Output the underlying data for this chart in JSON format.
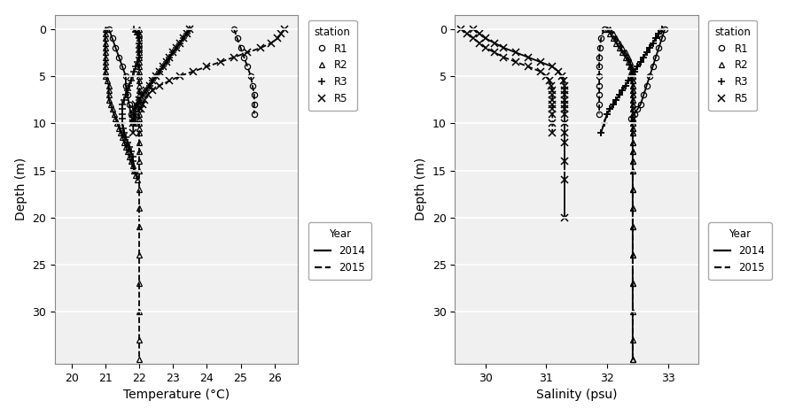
{
  "temp_panel": {
    "xlabel": "Temperature (°C)",
    "ylabel": "Depth (m)",
    "xlim": [
      19.5,
      26.7
    ],
    "ylim": [
      35.5,
      -1.5
    ],
    "xticks": [
      20,
      21,
      22,
      23,
      24,
      25,
      26
    ],
    "yticks": [
      0,
      5,
      10,
      15,
      20,
      25,
      30
    ],
    "R1_2014_x": [
      21.1,
      21.2,
      21.3,
      21.4,
      21.5,
      21.6,
      21.6,
      21.65,
      21.7,
      21.75,
      21.8
    ],
    "R1_2014_y": [
      0,
      1,
      2,
      3,
      4,
      5,
      6,
      7,
      8,
      9,
      10
    ],
    "R1_2015_x": [
      24.8,
      24.9,
      25.0,
      25.1,
      25.2,
      25.3,
      25.35,
      25.4,
      25.4,
      25.4
    ],
    "R1_2015_y": [
      0,
      1,
      2,
      3,
      4,
      5,
      6,
      7,
      8,
      9
    ],
    "R2_2014_x": [
      21.0,
      21.0,
      21.0,
      21.0,
      21.0,
      21.0,
      21.0,
      21.0,
      21.0,
      21.0,
      21.0,
      21.05,
      21.1,
      21.1,
      21.1,
      21.1,
      21.15,
      21.2,
      21.25,
      21.3,
      21.35,
      21.4,
      21.45,
      21.5,
      21.55,
      21.6,
      21.65,
      21.7,
      21.75,
      21.8,
      21.85,
      21.9,
      21.95
    ],
    "R2_2014_y": [
      0,
      0.5,
      1,
      1.5,
      2,
      2.5,
      3,
      3.5,
      4,
      4.5,
      5,
      5.5,
      6,
      6.5,
      7,
      7.5,
      8,
      8.5,
      9,
      9.5,
      10,
      10.5,
      11,
      11.5,
      12,
      12.5,
      13,
      13.5,
      14,
      14.5,
      15,
      15.5,
      16
    ],
    "R2_2015_x": [
      22.0,
      22.0,
      22.0,
      22.0,
      22.0,
      22.0,
      22.0,
      22.0,
      22.0,
      22.0,
      22.0,
      22.0,
      22.0,
      22.0,
      22.0,
      22.0,
      22.0,
      22.0,
      22.0,
      22.0,
      22.0,
      22.0,
      22.0,
      22.0,
      22.0,
      22.0,
      22.0,
      22.0,
      22.0,
      22.0,
      22.0,
      22.0,
      22.0,
      22.0,
      22.0
    ],
    "R2_2015_y": [
      0,
      0.5,
      1,
      1.5,
      2,
      2.5,
      3,
      3.5,
      4,
      4.5,
      5,
      5.5,
      6,
      6.5,
      7,
      7.5,
      8,
      8.5,
      9,
      9.5,
      10,
      10.5,
      11,
      12,
      13,
      14,
      15,
      17,
      19,
      21,
      24,
      27,
      30,
      33,
      35
    ],
    "R3_2014_x": [
      21.85,
      21.9,
      21.95,
      22.0,
      22.0,
      22.0,
      22.0,
      22.0,
      21.95,
      21.9,
      21.85,
      21.8,
      21.75,
      21.7,
      21.65,
      21.6,
      21.55,
      21.5,
      21.5,
      21.5,
      21.5,
      21.5,
      21.52,
      21.55,
      21.6,
      21.65,
      21.7,
      21.75,
      21.8,
      21.82,
      21.85
    ],
    "R3_2014_y": [
      0,
      0.3,
      0.6,
      1,
      1.5,
      2,
      2.5,
      3,
      3.5,
      4,
      4.5,
      5,
      5.5,
      6,
      6.5,
      7,
      7.5,
      8,
      8.5,
      9,
      9.5,
      10,
      10.5,
      11,
      11.5,
      12,
      12.5,
      13,
      13.5,
      14,
      15
    ],
    "R3_2015_x": [
      23.5,
      23.4,
      23.3,
      23.2,
      23.1,
      23.0,
      22.9,
      22.8,
      22.7,
      22.6,
      22.5,
      22.4,
      22.3,
      22.2,
      22.1,
      22.0,
      21.95,
      21.9,
      21.88,
      21.87,
      21.86
    ],
    "R3_2015_y": [
      0,
      0.5,
      1,
      1.5,
      2,
      2.5,
      3,
      3.5,
      4,
      4.5,
      5,
      5.5,
      6,
      6.5,
      7,
      7.5,
      8,
      8.5,
      9,
      9.5,
      10
    ],
    "R5_2014_x": [
      23.5,
      23.4,
      23.3,
      23.2,
      23.1,
      23.0,
      22.9,
      22.8,
      22.7,
      22.6,
      22.5,
      22.4,
      22.3,
      22.2,
      22.1,
      22.0,
      21.9,
      21.85,
      21.82,
      21.82,
      21.82,
      21.82
    ],
    "R5_2014_y": [
      0,
      0.5,
      1,
      1.5,
      2,
      2.5,
      3,
      3.5,
      4,
      4.5,
      5,
      5.5,
      6,
      6.5,
      7,
      7.5,
      8,
      8.5,
      9,
      9.5,
      10,
      11
    ],
    "R5_2015_x": [
      26.3,
      26.2,
      26.1,
      25.9,
      25.6,
      25.2,
      24.8,
      24.4,
      24.0,
      23.6,
      23.2,
      22.9,
      22.6,
      22.4,
      22.25,
      22.15,
      22.1,
      22.05
    ],
    "R5_2015_y": [
      0,
      0.5,
      1,
      1.5,
      2,
      2.5,
      3,
      3.5,
      4,
      4.5,
      5,
      5.5,
      6,
      6.5,
      7,
      7.5,
      8,
      8.5
    ]
  },
  "sal_panel": {
    "xlabel": "Salinity (psu)",
    "ylabel": "Depth (m)",
    "xlim": [
      29.5,
      33.5
    ],
    "ylim": [
      35.5,
      -1.5
    ],
    "xticks": [
      30,
      31,
      32,
      33
    ],
    "yticks": [
      0,
      5,
      10,
      15,
      20,
      25,
      30
    ],
    "R1_2014_x": [
      32.95,
      32.9,
      32.85,
      32.8,
      32.75,
      32.7,
      32.65,
      32.6,
      32.55,
      32.5,
      32.45,
      32.4
    ],
    "R1_2014_y": [
      0,
      1,
      2,
      3,
      4,
      5,
      6,
      7,
      8,
      8.5,
      9,
      9.5
    ],
    "R1_2015_x": [
      31.95,
      31.9,
      31.88,
      31.87,
      31.87,
      31.87,
      31.87,
      31.87,
      31.87,
      31.87
    ],
    "R1_2015_y": [
      0,
      1,
      2,
      3,
      4,
      5,
      6,
      7,
      8,
      9
    ],
    "R2_2014_x": [
      32.0,
      32.05,
      32.1,
      32.15,
      32.2,
      32.25,
      32.3,
      32.35,
      32.38,
      32.4,
      32.42,
      32.42,
      32.42,
      32.42,
      32.42,
      32.42,
      32.42,
      32.42,
      32.42,
      32.42,
      32.42,
      32.42,
      32.42,
      32.42,
      32.42,
      32.42,
      32.42,
      32.42,
      32.42,
      32.42,
      32.42,
      32.42,
      32.42
    ],
    "R2_2014_y": [
      0,
      0.5,
      1,
      1.5,
      2,
      2.5,
      3,
      3.5,
      4,
      4.5,
      5,
      5.5,
      6,
      6.5,
      7,
      7.5,
      8,
      8.5,
      9,
      9.5,
      10,
      10.5,
      11,
      12,
      13,
      14,
      15,
      17,
      19,
      21,
      24,
      27,
      35
    ],
    "R2_2015_x": [
      32.05,
      32.1,
      32.15,
      32.2,
      32.25,
      32.3,
      32.35,
      32.38,
      32.4,
      32.42,
      32.42,
      32.42,
      32.42,
      32.42,
      32.42,
      32.42,
      32.42,
      32.42,
      32.42,
      32.42,
      32.42,
      32.42,
      32.42,
      32.42,
      32.42,
      32.42,
      32.42,
      32.42,
      32.42,
      32.42,
      32.42,
      32.42,
      32.42,
      32.42,
      32.42
    ],
    "R2_2015_y": [
      0,
      0.5,
      1,
      1.5,
      2,
      2.5,
      3,
      3.5,
      4,
      4.5,
      5,
      5.5,
      6,
      6.5,
      7,
      7.5,
      8,
      8.5,
      9,
      9.5,
      10,
      10.5,
      11,
      12,
      13,
      14,
      15,
      17,
      19,
      21,
      24,
      27,
      30,
      33,
      35
    ],
    "R3_2014_x": [
      32.9,
      32.85,
      32.8,
      32.75,
      32.7,
      32.65,
      32.6,
      32.55,
      32.5,
      32.45,
      32.4,
      32.35,
      32.3,
      32.25,
      32.2,
      32.15,
      32.1,
      32.05,
      32.0,
      31.95,
      31.9
    ],
    "R3_2014_y": [
      0,
      0.5,
      1,
      1.5,
      2,
      2.5,
      3,
      3.5,
      4,
      4.5,
      5,
      5.5,
      6,
      6.5,
      7,
      7.5,
      8,
      8.5,
      9,
      10,
      11
    ],
    "R3_2015_x": [
      32.9,
      32.85,
      32.8,
      32.75,
      32.7,
      32.65,
      32.6,
      32.55,
      32.5,
      32.45,
      32.4,
      32.35,
      32.3,
      32.25,
      32.2,
      32.15,
      32.1,
      32.05,
      32.0,
      31.95,
      31.9
    ],
    "R3_2015_y": [
      0,
      0.5,
      1,
      1.5,
      2,
      2.5,
      3,
      3.5,
      4,
      4.5,
      5,
      5.5,
      6,
      6.5,
      7,
      7.5,
      8,
      8.5,
      9,
      10,
      11
    ],
    "R5_2014_x": [
      29.8,
      29.9,
      30.0,
      30.15,
      30.3,
      30.5,
      30.7,
      30.9,
      31.1,
      31.2,
      31.25,
      31.28,
      31.3,
      31.3,
      31.3,
      31.3,
      31.3,
      31.3,
      31.3,
      31.3,
      31.3,
      31.3,
      31.3,
      31.3,
      31.3
    ],
    "R5_2014_y": [
      0,
      0.5,
      1,
      1.5,
      2,
      2.5,
      3,
      3.5,
      4,
      4.5,
      5,
      5.5,
      6,
      6.5,
      7,
      7.5,
      8,
      8.5,
      9,
      10,
      11,
      12,
      14,
      16,
      20
    ],
    "R5_2015_x": [
      29.6,
      29.7,
      29.8,
      29.9,
      30.0,
      30.15,
      30.3,
      30.5,
      30.7,
      30.9,
      31.0,
      31.05,
      31.08,
      31.1,
      31.1,
      31.1,
      31.1,
      31.1,
      31.1,
      31.1,
      31.1
    ],
    "R5_2015_y": [
      0,
      0.5,
      1,
      1.5,
      2,
      2.5,
      3,
      3.5,
      4,
      4.5,
      5,
      5.5,
      6,
      6.5,
      7,
      7.5,
      8,
      8.5,
      9,
      10,
      11
    ]
  },
  "color": "#000000",
  "lw": 1.3,
  "ms": 4.5,
  "bg_color": "#f0f0f0"
}
